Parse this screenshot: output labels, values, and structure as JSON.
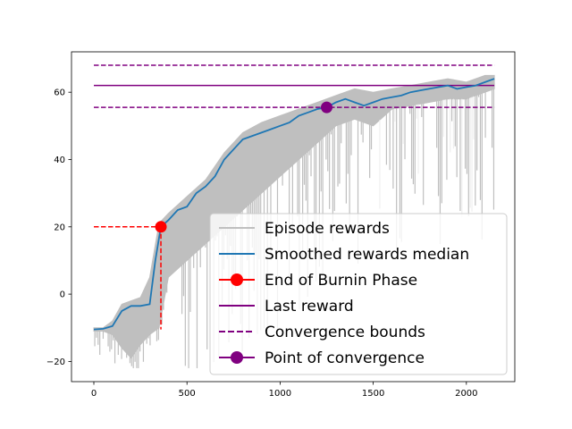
{
  "chart_data": {
    "type": "line",
    "title": "",
    "xlabel": "",
    "ylabel": "",
    "xlim": [
      -120,
      2260
    ],
    "ylim": [
      -26,
      72
    ],
    "x_ticks": [
      0,
      500,
      1000,
      1500,
      2000
    ],
    "y_ticks": [
      -20,
      0,
      20,
      40,
      60
    ],
    "grid": false,
    "legend_position": "lower-right",
    "legend": [
      {
        "label": "Episode rewards",
        "color": "#bfbfbf",
        "style": "line"
      },
      {
        "label": "Smoothed rewards median",
        "color": "#1f77b4",
        "style": "line"
      },
      {
        "label": "End of Burnin Phase",
        "color": "#ff0000",
        "style": "line-marker"
      },
      {
        "label": "Last reward",
        "color": "#800080",
        "style": "line"
      },
      {
        "label": "Convergence bounds",
        "color": "#800080",
        "style": "dashed"
      },
      {
        "label": "Point of convergence",
        "color": "#800080",
        "style": "marker"
      }
    ],
    "smoothed_median": {
      "color": "#1f77b4",
      "x": [
        0,
        50,
        100,
        150,
        200,
        250,
        300,
        330,
        360,
        400,
        450,
        500,
        550,
        600,
        650,
        700,
        750,
        800,
        850,
        900,
        950,
        1000,
        1050,
        1100,
        1150,
        1200,
        1250,
        1300,
        1350,
        1400,
        1450,
        1500,
        1550,
        1600,
        1650,
        1700,
        1750,
        1800,
        1850,
        1900,
        1950,
        2000,
        2050,
        2100,
        2150
      ],
      "y": [
        -10.5,
        -10.3,
        -9.5,
        -5,
        -3.5,
        -3.5,
        -3,
        10,
        20,
        22,
        25,
        26,
        30,
        32,
        35,
        40,
        43,
        46,
        47,
        48,
        49,
        50,
        51,
        53,
        54,
        55,
        55.5,
        57,
        58,
        57,
        56,
        57,
        58,
        58.5,
        59,
        60,
        60.5,
        61,
        61.5,
        62,
        61,
        61.5,
        62,
        63,
        64
      ]
    },
    "episode_rewards": {
      "color": "#bfbfbf",
      "x": [
        0,
        50,
        100,
        150,
        200,
        250,
        300,
        350,
        400,
        500,
        600,
        700,
        800,
        900,
        1000,
        1100,
        1200,
        1300,
        1400,
        1500,
        1600,
        1700,
        1800,
        1900,
        2000,
        2100,
        2150
      ],
      "upper": [
        -10,
        -10,
        -8,
        -3,
        -2,
        -1,
        5,
        21,
        24,
        29,
        34,
        42,
        48,
        51,
        53,
        55,
        57,
        59,
        61,
        60,
        61,
        62,
        63,
        64,
        63,
        65,
        65
      ],
      "lower": [
        -11,
        -11,
        -12,
        -16,
        -19,
        -15,
        -12,
        -10,
        5,
        10,
        15,
        20,
        25,
        30,
        35,
        40,
        45,
        50,
        52,
        50,
        55,
        56,
        57,
        58,
        58,
        60,
        61
      ]
    },
    "burnin_end": {
      "x": 360,
      "y": 20,
      "vertical_line_bottom": -10.5,
      "color": "#ff0000"
    },
    "last_reward": {
      "y": 62,
      "color": "#800080"
    },
    "convergence_bounds": {
      "lower": 55.5,
      "upper": 68,
      "color": "#800080"
    },
    "convergence_point": {
      "x": 1250,
      "y": 55.5,
      "color": "#800080"
    }
  }
}
